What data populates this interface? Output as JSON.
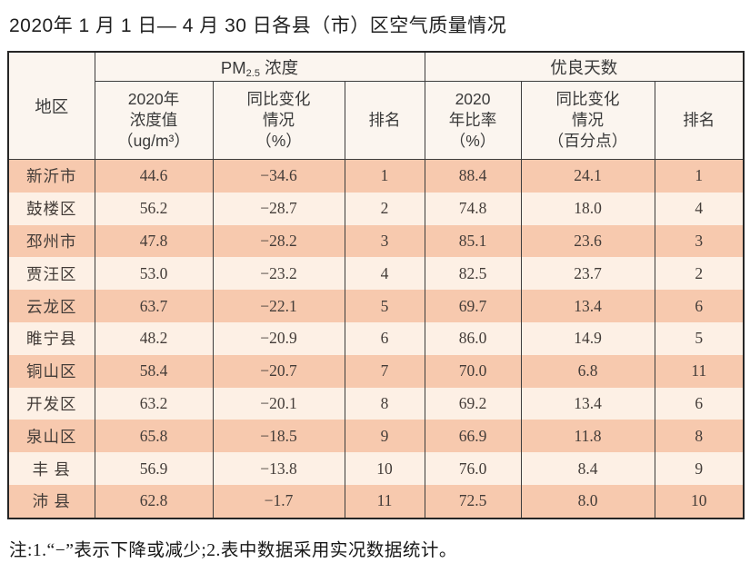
{
  "page": {
    "title": "2020年 1 月 1 日— 4 月 30 日各县（市）区空气质量情况",
    "footnote": "注:1.“−”表示下降或减少;2.表中数据采用实况数据统计。"
  },
  "table": {
    "corner_header": "地区",
    "groups": [
      {
        "label_prefix": "PM",
        "label_sub": "2.5",
        "label_suffix": " 浓度"
      },
      {
        "label": "优良天数"
      }
    ],
    "columns": [
      "2020年\n浓度值\n（ug/m³）",
      "同比变化\n情况\n（%）",
      "排名",
      "2020\n年比率\n（%）",
      "同比变化\n情况\n（百分点）",
      "排名"
    ],
    "rows": [
      {
        "region": "新沂市",
        "values": [
          "44.6",
          "−34.6",
          "1",
          "88.4",
          "24.1",
          "1"
        ]
      },
      {
        "region": "鼓楼区",
        "values": [
          "56.2",
          "−28.7",
          "2",
          "74.8",
          "18.0",
          "4"
        ]
      },
      {
        "region": "邳州市",
        "values": [
          "47.8",
          "−28.2",
          "3",
          "85.1",
          "23.6",
          "3"
        ]
      },
      {
        "region": "贾汪区",
        "values": [
          "53.0",
          "−23.2",
          "4",
          "82.5",
          "23.7",
          "2"
        ]
      },
      {
        "region": "云龙区",
        "values": [
          "63.7",
          "−22.1",
          "5",
          "69.7",
          "13.4",
          "6"
        ]
      },
      {
        "region": "睢宁县",
        "values": [
          "48.2",
          "−20.9",
          "6",
          "86.0",
          "14.9",
          "5"
        ]
      },
      {
        "region": "铜山区",
        "values": [
          "58.4",
          "−20.7",
          "7",
          "70.0",
          "6.8",
          "11"
        ]
      },
      {
        "region": "开发区",
        "values": [
          "63.2",
          "−20.1",
          "8",
          "69.2",
          "13.4",
          "6"
        ]
      },
      {
        "region": "泉山区",
        "values": [
          "65.8",
          "−18.5",
          "9",
          "66.9",
          "11.8",
          "8"
        ]
      },
      {
        "region": "丰 县",
        "values": [
          "56.9",
          "−13.8",
          "10",
          "76.0",
          "8.4",
          "9"
        ]
      },
      {
        "region": "沛 县",
        "values": [
          "62.8",
          "−1.7",
          "11",
          "72.5",
          "8.0",
          "10"
        ]
      }
    ]
  },
  "colors": {
    "row_odd": "#f7c9ae",
    "row_even": "#fdf0e5",
    "header_bg": "#fbf5ef",
    "border": "#3d3d3d"
  }
}
